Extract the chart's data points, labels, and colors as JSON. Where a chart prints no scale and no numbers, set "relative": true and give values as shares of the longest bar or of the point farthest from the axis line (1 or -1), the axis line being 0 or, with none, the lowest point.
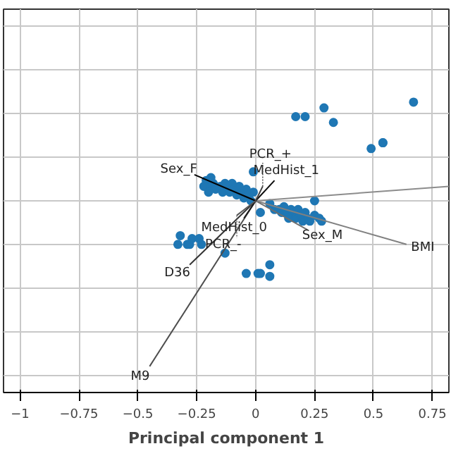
{
  "chart_data": {
    "type": "scatter",
    "xlabel": "Principal component 1",
    "relative": true,
    "xlim": [
      -1.07,
      0.82
    ],
    "xticks": [
      -1.0,
      -0.75,
      -0.5,
      -0.25,
      0.0,
      0.25,
      0.5,
      0.75
    ],
    "tick_labels": "x",
    "grid": true,
    "series": [
      {
        "color": "#1f77b4",
        "marker": "circle",
        "x": [
          0.17,
          0.21,
          0.29,
          0.33,
          0.67,
          0.49,
          0.54,
          0.54,
          -0.01,
          0.25,
          -0.32,
          -0.33,
          -0.29,
          -0.28,
          -0.27,
          -0.24,
          -0.23,
          -0.13,
          -0.04,
          0.01,
          0.02,
          0.06,
          0.06,
          0.02,
          -0.21,
          -0.2,
          -0.19,
          -0.18,
          -0.17,
          -0.15,
          -0.14,
          -0.13,
          -0.12,
          -0.11,
          -0.1,
          -0.09,
          -0.08,
          -0.07,
          -0.06,
          -0.05,
          -0.04,
          -0.03,
          -0.02,
          -0.22,
          -0.2,
          -0.01,
          0.06,
          0.08,
          0.1,
          0.11,
          0.12,
          0.13,
          0.14,
          0.15,
          0.16,
          0.17,
          0.18,
          0.19,
          0.2,
          0.21,
          0.22,
          0.23,
          0.25,
          0.27,
          0.28
        ],
        "values": [
          0.95,
          0.95,
          0.98,
          0.93,
          1.0,
          0.84,
          0.86,
          0.86,
          0.76,
          0.66,
          0.54,
          0.51,
          0.51,
          0.51,
          0.53,
          0.53,
          0.51,
          0.48,
          0.41,
          0.41,
          0.41,
          0.44,
          0.4,
          0.62,
          0.73,
          0.71,
          0.74,
          0.72,
          0.7,
          0.71,
          0.69,
          0.72,
          0.71,
          0.69,
          0.72,
          0.7,
          0.68,
          0.71,
          0.69,
          0.67,
          0.7,
          0.68,
          0.66,
          0.71,
          0.69,
          0.69,
          0.65,
          0.63,
          0.63,
          0.62,
          0.64,
          0.62,
          0.6,
          0.63,
          0.62,
          0.6,
          0.63,
          0.61,
          0.59,
          0.62,
          0.6,
          0.59,
          0.61,
          0.6,
          0.59
        ]
      },
      {
        "type": "line",
        "name": "Sex_F",
        "color": "#000000",
        "x": [
          0,
          -0.26
        ],
        "values": [
          0.66,
          0.75
        ]
      },
      {
        "type": "line",
        "name": "BMI",
        "color": "#808080",
        "x": [
          0,
          0.64
        ],
        "values": [
          0.66,
          0.51
        ]
      },
      {
        "type": "line",
        "name": "Sex_M",
        "color": "#6e6e6e",
        "x": [
          0,
          0.22
        ],
        "values": [
          0.66,
          0.56
        ]
      },
      {
        "type": "line",
        "color": "#8c8c8c",
        "x": [
          0,
          0.82
        ],
        "values": [
          0.66,
          0.71
        ]
      },
      {
        "type": "line",
        "name": "D36",
        "color": "#333333",
        "x": [
          0,
          -0.28
        ],
        "values": [
          0.66,
          0.44
        ]
      },
      {
        "type": "line",
        "name": "M9",
        "color": "#4d4d4d",
        "x": [
          0,
          -0.45
        ],
        "values": [
          0.66,
          0.09
        ]
      },
      {
        "type": "line",
        "name": "MedHist_1",
        "color": "#0d0d0d",
        "x": [
          0,
          0.08
        ],
        "values": [
          0.66,
          0.73
        ]
      },
      {
        "type": "line",
        "name": "PCR_+",
        "color": "#404040",
        "x": [
          0,
          0.03
        ],
        "values": [
          0.66,
          0.71
        ]
      },
      {
        "type": "line",
        "name": "MedHist_0",
        "color": "#1a1a1a",
        "x": [
          0,
          -0.05
        ],
        "values": [
          0.66,
          0.6
        ]
      },
      {
        "type": "line",
        "name": "PCR_-",
        "color": "#595959",
        "x": [
          0,
          -0.08
        ],
        "values": [
          0.66,
          0.61
        ]
      }
    ]
  }
}
